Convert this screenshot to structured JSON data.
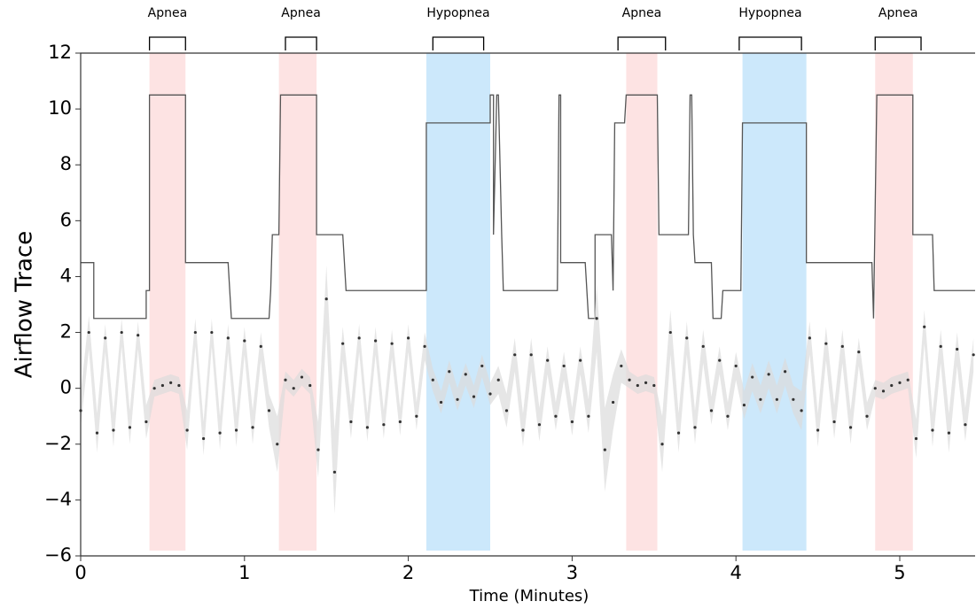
{
  "chart_data": {
    "type": "line",
    "xlabel": "Time (Minutes)",
    "ylabel": "Airflow Trace",
    "xlim": [
      0,
      5.46
    ],
    "ylim": [
      -6,
      12
    ],
    "xticks": [
      0,
      1,
      2,
      3,
      4,
      5
    ],
    "yticks": [
      {
        "value": -6,
        "label": "−6"
      },
      {
        "value": -4,
        "label": "−4"
      },
      {
        "value": -2,
        "label": "−2"
      },
      0,
      2,
      4,
      6,
      8,
      10,
      12
    ],
    "regions": [
      {
        "x0": 0.42,
        "x1": 0.64,
        "color": "#fde3e3"
      },
      {
        "x0": 1.21,
        "x1": 1.44,
        "color": "#fde3e3"
      },
      {
        "x0": 2.11,
        "x1": 2.5,
        "color": "#cce8fb"
      },
      {
        "x0": 3.33,
        "x1": 3.52,
        "color": "#fde3e3"
      },
      {
        "x0": 4.04,
        "x1": 4.43,
        "color": "#cce8fb"
      },
      {
        "x0": 4.85,
        "x1": 5.08,
        "color": "#fde3e3"
      }
    ],
    "annotations": [
      {
        "label": "Apnea",
        "x0": 0.42,
        "x1": 0.64
      },
      {
        "label": "Apnea",
        "x0": 1.25,
        "x1": 1.44
      },
      {
        "label": "Hypopnea",
        "x0": 2.15,
        "x1": 2.46
      },
      {
        "label": "Apnea",
        "x0": 3.28,
        "x1": 3.57
      },
      {
        "label": "Hypopnea",
        "x0": 4.02,
        "x1": 4.4
      },
      {
        "label": "Apnea",
        "x0": 4.85,
        "x1": 5.13
      }
    ],
    "series": [
      {
        "color": "#555555",
        "x": [
          0,
          0.08,
          0.08,
          0.4,
          0.4,
          0.42,
          0.42,
          0.64,
          0.64,
          0.9,
          0.92,
          1.15,
          1.16,
          1.17,
          1.18,
          1.21,
          1.22,
          1.44,
          1.44,
          1.6,
          1.62,
          2.11,
          2.11,
          2.5,
          2.5,
          2.52,
          2.52,
          2.54,
          2.55,
          2.57,
          2.58,
          2.91,
          2.92,
          2.93,
          2.93,
          3.08,
          3.1,
          3.14,
          3.14,
          3.24,
          3.25,
          3.26,
          3.27,
          3.32,
          3.33,
          3.52,
          3.53,
          3.71,
          3.72,
          3.73,
          3.74,
          3.75,
          3.85,
          3.86,
          3.91,
          3.92,
          4.03,
          4.04,
          4.43,
          4.43,
          4.83,
          4.84,
          4.86,
          5.08,
          5.08,
          5.2,
          5.21,
          5.46
        ],
        "values": [
          4.5,
          4.5,
          2.5,
          2.5,
          3.5,
          3.5,
          10.5,
          10.5,
          4.5,
          4.5,
          2.5,
          2.5,
          3.5,
          5.5,
          5.5,
          5.5,
          10.5,
          10.5,
          5.5,
          5.5,
          3.5,
          3.5,
          9.5,
          9.5,
          10.5,
          10.5,
          5.5,
          10.5,
          10.5,
          5.5,
          3.5,
          3.5,
          10.5,
          10.5,
          4.5,
          4.5,
          2.5,
          2.5,
          5.5,
          5.5,
          3.5,
          9.5,
          9.5,
          9.5,
          10.5,
          10.5,
          5.5,
          5.5,
          10.5,
          10.5,
          5.5,
          4.5,
          4.5,
          2.5,
          2.5,
          3.5,
          3.5,
          9.5,
          9.5,
          4.5,
          4.5,
          2.5,
          10.5,
          10.5,
          5.5,
          5.5,
          3.5,
          3.5
        ]
      },
      {
        "color": "#333333",
        "band_color": "#dcdcdc",
        "x": [
          0,
          0.05,
          0.1,
          0.15,
          0.2,
          0.25,
          0.3,
          0.35,
          0.4,
          0.45,
          0.5,
          0.55,
          0.6,
          0.65,
          0.7,
          0.75,
          0.8,
          0.85,
          0.9,
          0.95,
          1,
          1.05,
          1.1,
          1.15,
          1.2,
          1.25,
          1.3,
          1.35,
          1.4,
          1.45,
          1.5,
          1.55,
          1.6,
          1.65,
          1.7,
          1.75,
          1.8,
          1.85,
          1.9,
          1.95,
          2,
          2.05,
          2.1,
          2.15,
          2.2,
          2.25,
          2.3,
          2.35,
          2.4,
          2.45,
          2.5,
          2.55,
          2.6,
          2.65,
          2.7,
          2.75,
          2.8,
          2.85,
          2.9,
          2.95,
          3,
          3.05,
          3.1,
          3.15,
          3.2,
          3.25,
          3.3,
          3.35,
          3.4,
          3.45,
          3.5,
          3.55,
          3.6,
          3.65,
          3.7,
          3.75,
          3.8,
          3.85,
          3.9,
          3.95,
          4,
          4.05,
          4.1,
          4.15,
          4.2,
          4.25,
          4.3,
          4.35,
          4.4,
          4.45,
          4.5,
          4.55,
          4.6,
          4.65,
          4.7,
          4.75,
          4.8,
          4.85,
          4.9,
          4.95,
          5,
          5.05,
          5.1,
          5.15,
          5.2,
          5.25,
          5.3,
          5.35,
          5.4,
          5.45
        ],
        "values": [
          -0.8,
          2.0,
          -1.6,
          1.8,
          -1.5,
          2.0,
          -1.4,
          1.9,
          -1.2,
          0.0,
          0.1,
          0.2,
          0.1,
          -1.5,
          2.0,
          -1.8,
          2.0,
          -1.6,
          1.8,
          -1.5,
          1.7,
          -1.4,
          1.5,
          -0.8,
          -2.0,
          0.3,
          0.0,
          0.4,
          0.1,
          -2.2,
          3.2,
          -3.0,
          1.6,
          -1.2,
          1.8,
          -1.4,
          1.7,
          -1.3,
          1.6,
          -1.2,
          1.8,
          -1.0,
          1.5,
          0.3,
          -0.5,
          0.6,
          -0.4,
          0.5,
          -0.3,
          0.8,
          -0.2,
          0.3,
          -0.8,
          1.2,
          -1.5,
          1.2,
          -1.3,
          1.0,
          -1.0,
          0.8,
          -1.2,
          1.0,
          -1.0,
          2.5,
          -2.2,
          -0.5,
          0.8,
          0.3,
          0.1,
          0.2,
          0.1,
          -2.0,
          2.0,
          -1.6,
          1.8,
          -1.4,
          1.5,
          -0.8,
          1.0,
          -1.0,
          0.8,
          -0.6,
          0.4,
          -0.4,
          0.5,
          -0.4,
          0.6,
          -0.4,
          -0.8,
          1.8,
          -1.5,
          1.6,
          -1.2,
          1.5,
          -1.4,
          1.3,
          -1.0,
          0.0,
          -0.1,
          0.1,
          0.2,
          0.3,
          -1.8,
          2.2,
          -1.5,
          1.5,
          -1.6,
          1.4,
          -1.3,
          1.2
        ],
        "errors": [
          0.6,
          0.6,
          0.7,
          0.5,
          0.6,
          0.5,
          0.6,
          0.5,
          0.6,
          0.3,
          0.3,
          0.3,
          0.3,
          0.7,
          0.5,
          0.6,
          0.5,
          0.6,
          0.5,
          0.6,
          0.5,
          0.6,
          0.5,
          0.6,
          1.0,
          0.3,
          0.3,
          0.3,
          0.3,
          1.0,
          1.2,
          1.5,
          0.6,
          0.6,
          0.5,
          0.5,
          0.5,
          0.5,
          0.5,
          0.5,
          0.5,
          0.5,
          0.5,
          0.4,
          0.4,
          0.4,
          0.4,
          0.4,
          0.4,
          0.4,
          0.4,
          0.5,
          0.6,
          0.6,
          0.6,
          0.6,
          0.6,
          0.5,
          0.5,
          0.5,
          0.5,
          0.5,
          0.6,
          1.2,
          1.5,
          1.0,
          0.6,
          0.3,
          0.3,
          0.3,
          0.3,
          1.0,
          0.8,
          0.7,
          0.6,
          0.6,
          0.6,
          0.5,
          0.5,
          0.5,
          0.5,
          0.5,
          0.5,
          0.5,
          0.5,
          0.5,
          0.5,
          0.5,
          0.7,
          0.6,
          0.6,
          0.6,
          0.6,
          0.6,
          0.6,
          0.5,
          0.5,
          0.3,
          0.3,
          0.3,
          0.3,
          0.3,
          0.7,
          0.6,
          0.6,
          0.6,
          0.7,
          0.6,
          0.6,
          0.6
        ]
      }
    ]
  }
}
